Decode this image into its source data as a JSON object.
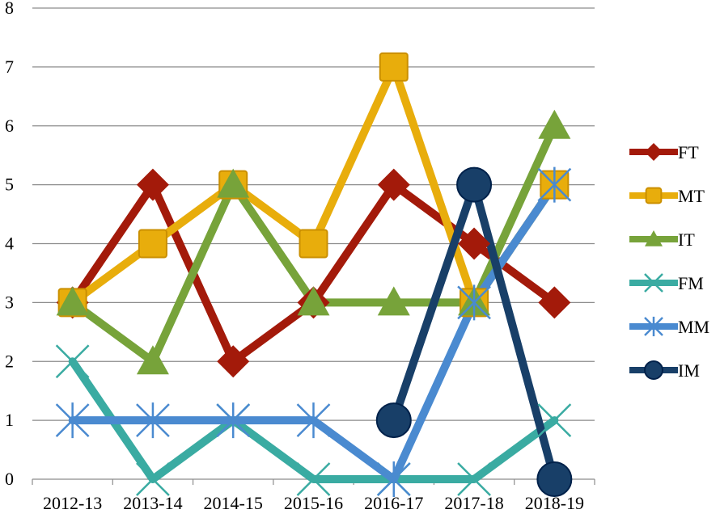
{
  "chart_data": {
    "type": "line",
    "title": "",
    "xlabel": "",
    "ylabel": "",
    "categories": [
      "2012-13",
      "2013-14",
      "2014-15",
      "2015-16",
      "2016-17",
      "2017-18",
      "2018-19"
    ],
    "ylim": [
      0,
      8
    ],
    "yticks": [
      "0",
      "1",
      "2",
      "3",
      "4",
      "5",
      "6",
      "7",
      "8"
    ],
    "grid": "horizontal",
    "legend_position": "right",
    "series": [
      {
        "name": "FT",
        "marker": "diamond",
        "color": "#a31a0a",
        "values": [
          3,
          5,
          2,
          3,
          5,
          4,
          3
        ]
      },
      {
        "name": "MT",
        "marker": "square",
        "color": "#e8ad0c",
        "values": [
          3,
          4,
          5,
          4,
          7,
          3,
          5
        ]
      },
      {
        "name": "IT",
        "marker": "triangle",
        "color": "#77a33a",
        "values": [
          3,
          2,
          5,
          3,
          3,
          3,
          6
        ]
      },
      {
        "name": "FM",
        "marker": "x",
        "color": "#3aaba2",
        "values": [
          2,
          0,
          1,
          0,
          0,
          0,
          1
        ]
      },
      {
        "name": "MM",
        "marker": "star",
        "color": "#4a8ad0",
        "values": [
          1,
          1,
          1,
          1,
          0,
          3,
          5
        ]
      },
      {
        "name": "IM",
        "marker": "circle",
        "color": "#183f68",
        "values": [
          null,
          null,
          null,
          null,
          1,
          5,
          0
        ]
      }
    ]
  }
}
